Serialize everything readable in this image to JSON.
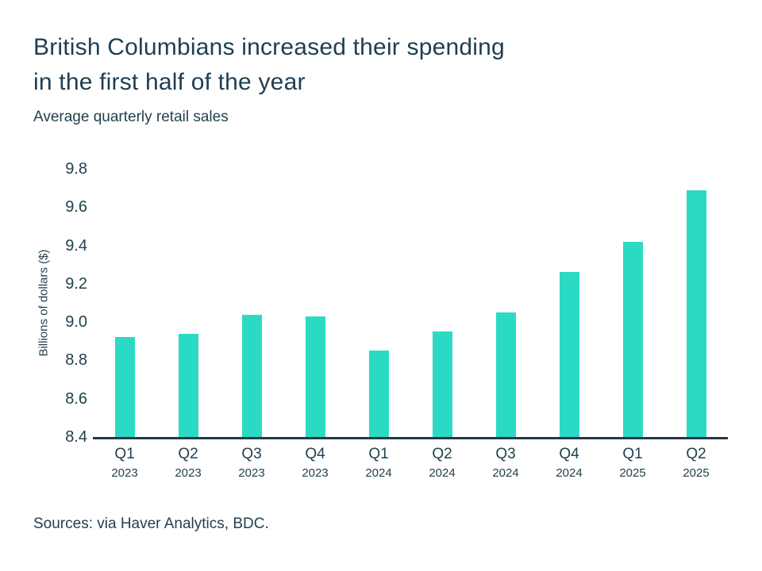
{
  "header": {
    "title_line1": "British Columbians increased their spending",
    "title_line2": "in the first half of the year",
    "subtitle": "Average quarterly retail sales"
  },
  "footer": {
    "sources": "Sources: via Haver Analytics, BDC."
  },
  "colors": {
    "bar": "#2BDAC4",
    "axis_line": "#24384A",
    "text_dark": "#1F3E51"
  },
  "chart_data": {
    "type": "bar",
    "title": "British Columbians increased their spending in the first half of the year",
    "subtitle": "Average quarterly retail sales",
    "xlabel": "",
    "ylabel": "Billions of dollars ($)",
    "categories": [
      "Q1 2023",
      "Q2 2023",
      "Q3 2023",
      "Q4 2023",
      "Q1 2024",
      "Q2 2024",
      "Q3 2024",
      "Q4 2024",
      "Q1 2025",
      "Q2 2025"
    ],
    "values": [
      8.92,
      8.94,
      9.04,
      9.03,
      8.85,
      8.95,
      9.05,
      9.26,
      9.42,
      9.69
    ],
    "ylim": [
      8.4,
      9.8
    ],
    "yticks": [
      8.4,
      8.6,
      8.8,
      9.0,
      9.2,
      9.4,
      9.6,
      9.8
    ],
    "ytick_format_decimals": 1,
    "grid": false,
    "legend_position": "none",
    "bar_color": "#2BDAC4",
    "axis_color": "#24384A"
  }
}
